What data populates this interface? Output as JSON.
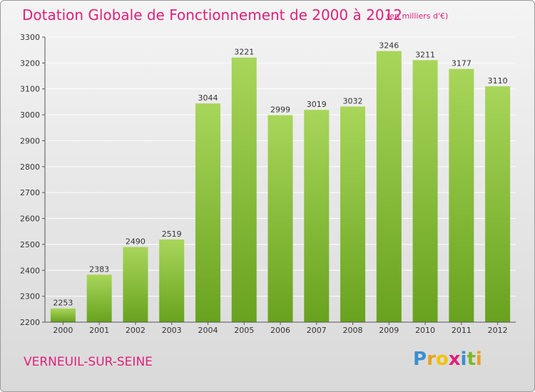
{
  "header": {
    "title": "Dotation Globale de Fonctionnement de 2000 à 2012",
    "subtitle": "(en milliers d'€)"
  },
  "footer": {
    "place_name": "VERNEUIL-SUR-SEINE",
    "brand": {
      "letters": [
        "P",
        "r",
        "o",
        "x",
        "i",
        "t",
        "i"
      ],
      "letter_colors": [
        "#3a8fd0",
        "#e8a020",
        "#f2c400",
        "#e0207a",
        "#3a8fd0",
        "#7ab82a",
        "#e8a020"
      ]
    }
  },
  "colors": {
    "accent": "#e0207a",
    "bar_light": "#a8d65a",
    "bar_dark": "#68a21e",
    "grid": "#ffffff",
    "axis": "#555555",
    "text": "#333333"
  },
  "chart_data": {
    "type": "bar",
    "title": "Dotation Globale de Fonctionnement de 2000 à 2012",
    "subtitle": "(en milliers d'€)",
    "xlabel": "",
    "ylabel": "",
    "categories": [
      "2000",
      "2001",
      "2002",
      "2003",
      "2004",
      "2005",
      "2006",
      "2007",
      "2008",
      "2009",
      "2010",
      "2011",
      "2012"
    ],
    "values": [
      2253,
      2383,
      2490,
      2519,
      3044,
      3221,
      2999,
      3019,
      3032,
      3246,
      3211,
      3177,
      3110
    ],
    "ylim": [
      2200,
      3300
    ],
    "yticks": [
      2200,
      2300,
      2400,
      2500,
      2600,
      2700,
      2800,
      2900,
      3000,
      3100,
      3200,
      3300
    ],
    "grid": true,
    "data_labels": true
  }
}
